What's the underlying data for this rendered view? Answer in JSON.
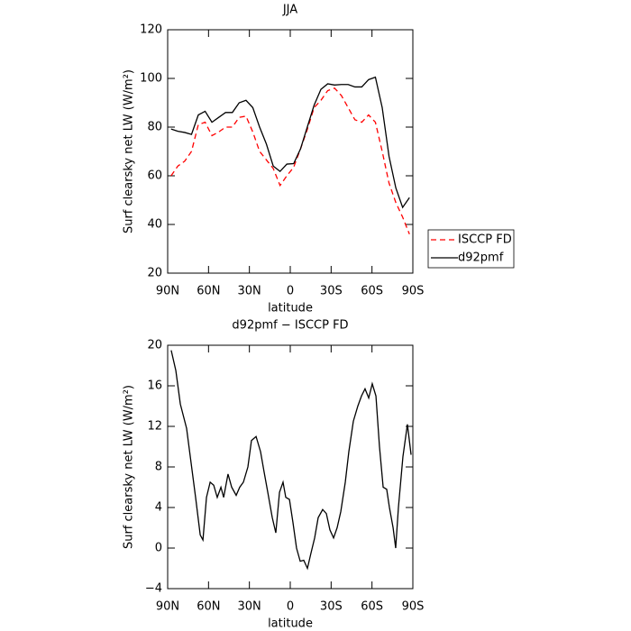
{
  "chart_data": [
    {
      "type": "line",
      "title": "JJA",
      "xlabel": "latitude",
      "ylabel": "Surf clearsky net LW (W/m²)",
      "x": [
        87.5,
        82.5,
        77.5,
        72.5,
        67.5,
        62.5,
        57.5,
        52.5,
        47.5,
        42.5,
        37.5,
        32.5,
        27.5,
        22.5,
        17.5,
        12.5,
        7.5,
        2.5,
        -2.5,
        -7.5,
        -12.5,
        -17.5,
        -22.5,
        -27.5,
        -32.5,
        -37.5,
        -42.5,
        -47.5,
        -52.5,
        -57.5,
        -62.5,
        -67.5,
        -72.5,
        -77.5,
        -82.5,
        -87.5
      ],
      "series": [
        {
          "name": "ISCCP FD",
          "color": "#ff0000",
          "dash": true,
          "values": [
            60,
            64,
            66,
            70,
            81,
            82,
            76.5,
            78,
            80,
            80,
            84,
            84.5,
            78,
            70,
            66.5,
            63,
            56,
            60,
            63.5,
            71,
            79,
            88,
            91,
            95,
            96,
            93,
            88,
            83,
            82,
            85,
            82,
            70,
            57,
            49,
            43,
            36
          ]
        },
        {
          "name": "d92pmf",
          "color": "#000000",
          "dash": false,
          "values": [
            79.2,
            78.3,
            77.8,
            77,
            85,
            86.5,
            82,
            84,
            86,
            86,
            90,
            91,
            88,
            80,
            73,
            64,
            61.8,
            64.8,
            65,
            71,
            80,
            89,
            95.5,
            97.8,
            97.3,
            97.5,
            97.5,
            96.5,
            96.5,
            99.5,
            100.5,
            88,
            68,
            55,
            47,
            51
          ]
        }
      ],
      "xlim": [
        90,
        -90
      ],
      "xticks": [
        {
          "value": 90,
          "label": "90N"
        },
        {
          "value": 60,
          "label": "60N"
        },
        {
          "value": 30,
          "label": "30N"
        },
        0,
        {
          "value": -30,
          "label": "30S"
        },
        {
          "value": -60,
          "label": "60S"
        },
        {
          "value": -90,
          "label": "90S"
        }
      ],
      "ylim": [
        20,
        120
      ],
      "yticks": [
        20,
        40,
        60,
        80,
        100,
        120
      ],
      "legend": "right-outside"
    },
    {
      "type": "line",
      "title": "d92pmf − ISCCP FD",
      "xlabel": "latitude",
      "ylabel": "Surf clearsky net LW (W/m²)",
      "x": [
        87.4,
        84,
        80.7,
        76.1,
        69.5,
        66.1,
        64.1,
        61.5,
        58.8,
        56.2,
        53.6,
        50.9,
        48.9,
        45.7,
        43,
        39.7,
        37.1,
        34.4,
        31.1,
        28.5,
        25.1,
        21.8,
        19.2,
        16.5,
        13.2,
        10.6,
        7.9,
        5.3,
        3.3,
        0.6,
        -2,
        -4.6,
        -7.3,
        -9.9,
        -12.6,
        -15.2,
        -17.9,
        -20.5,
        -23.8,
        -26.5,
        -29.1,
        -31.8,
        -34.4,
        -37.1,
        -40.4,
        -43,
        -46.3,
        -49.6,
        -52.3,
        -54.9,
        -57.6,
        -60.2,
        -62.9,
        -65.5,
        -68.2,
        -70.8,
        -72.8,
        -75.5,
        -77.4,
        -79.4,
        -82.7,
        -86,
        -88.7
      ],
      "values": [
        19.5,
        17.5,
        14.2,
        11.8,
        5,
        1.3,
        0.8,
        5,
        6.5,
        6.2,
        5,
        6,
        5,
        7.3,
        6,
        5.2,
        6,
        6.5,
        8,
        10.6,
        11,
        9.5,
        7.5,
        5.5,
        3,
        1.5,
        5.5,
        6.5,
        5,
        4.8,
        2.5,
        0,
        -1.3,
        -1.2,
        -2,
        -0.5,
        1,
        3,
        3.8,
        3.4,
        1.8,
        1,
        2,
        3.6,
        6.5,
        9.5,
        12.5,
        14,
        15,
        15.7,
        14.8,
        16.2,
        15,
        10,
        6,
        5.8,
        4,
        2,
        0,
        4,
        9,
        12.2,
        9.2
      ],
      "color": "#000000",
      "xlim": [
        90,
        -90
      ],
      "xticks": [
        {
          "value": 90,
          "label": "90N"
        },
        {
          "value": 60,
          "label": "60N"
        },
        {
          "value": 30,
          "label": "30N"
        },
        0,
        {
          "value": -30,
          "label": "30S"
        },
        {
          "value": -60,
          "label": "60S"
        },
        {
          "value": -90,
          "label": "90S"
        }
      ],
      "ylim": [
        -4,
        20
      ],
      "yticks": [
        {
          "value": -4,
          "label": "−4"
        },
        0,
        4,
        8,
        12,
        16,
        20
      ]
    }
  ]
}
